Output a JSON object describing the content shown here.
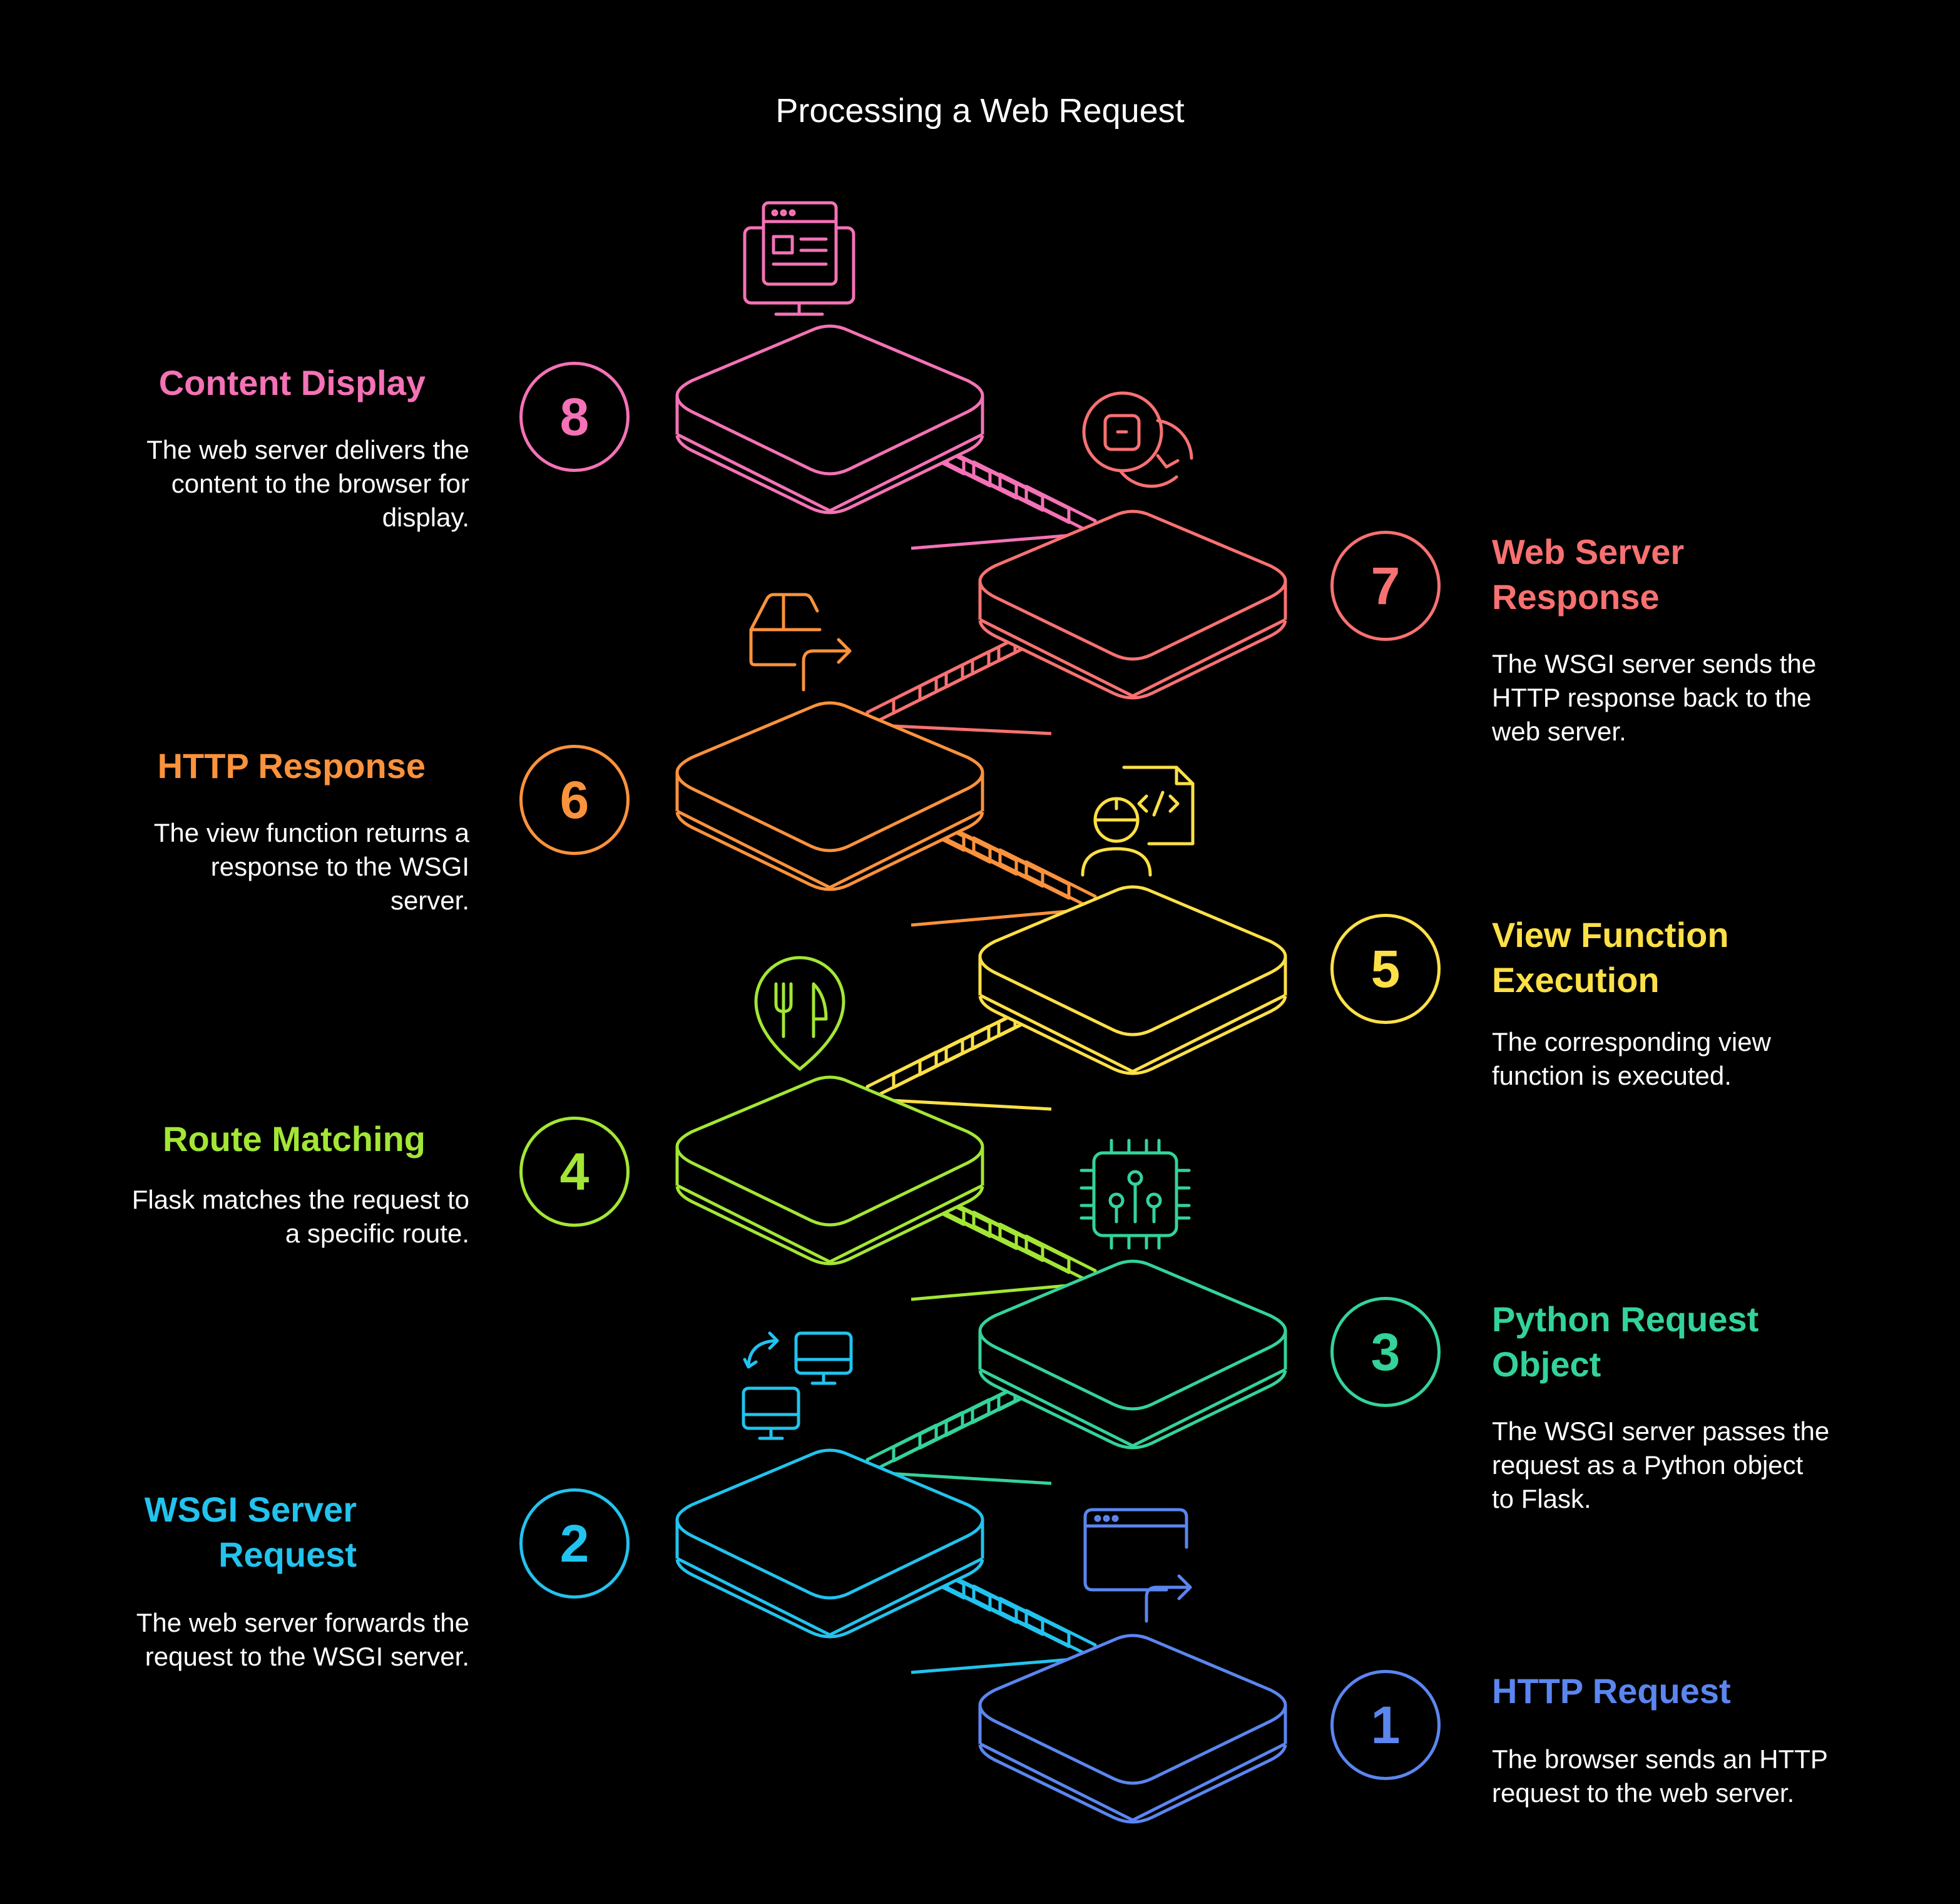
{
  "title": "Processing a Web Request",
  "steps": [
    {
      "number": "1",
      "title": "HTTP Request",
      "description": "The browser sends an HTTP request to the web server.",
      "color": "#5b86f0",
      "icon": "browser-window-arrow-icon"
    },
    {
      "number": "2",
      "title": "WSGI Server Request",
      "description": "The web server forwards the request to the WSGI server.",
      "color": "#22c3ee",
      "icon": "computer-exchange-icon"
    },
    {
      "number": "3",
      "title": "Python Request Object",
      "description": "The WSGI server passes the request as a Python object to Flask.",
      "color": "#34d399",
      "icon": "circuit-chip-icon"
    },
    {
      "number": "4",
      "title": "Route Matching",
      "description": "Flask matches the request to a specific route.",
      "color": "#a3e635",
      "icon": "map-pin-fork-knife-icon"
    },
    {
      "number": "5",
      "title": "View Function Execution",
      "description": "The corresponding view function is executed.",
      "color": "#fde047",
      "icon": "developer-code-icon"
    },
    {
      "number": "6",
      "title": "HTTP Response",
      "description": "The view function returns a response to the WSGI server.",
      "color": "#fb923c",
      "icon": "package-return-icon"
    },
    {
      "number": "7",
      "title": "Web Server Response",
      "description": "The WSGI server sends the HTTP response back to the web server.",
      "color": "#f87171",
      "icon": "refresh-cycle-icon"
    },
    {
      "number": "8",
      "title": "Content Display",
      "description": "The web server delivers the content to the browser for display.",
      "color": "#f472b6",
      "icon": "monitor-display-icon"
    }
  ]
}
